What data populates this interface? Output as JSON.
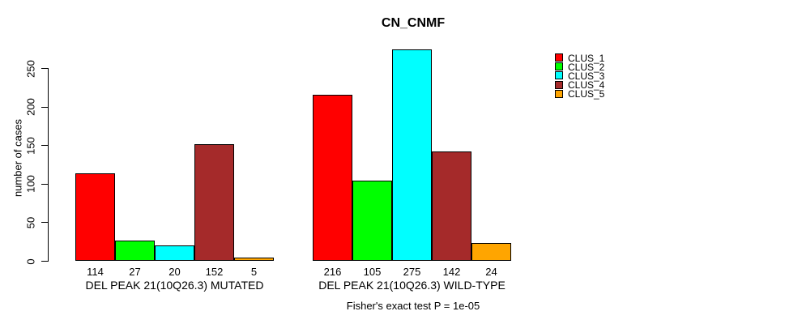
{
  "chart_data": {
    "type": "bar",
    "title": "CN_CNMF",
    "xlabel": "",
    "ylabel": "number of cases",
    "yticks": [
      0,
      50,
      100,
      150,
      200,
      250
    ],
    "ylim": [
      0,
      286
    ],
    "grid": false,
    "background_color": "#FFFFFF",
    "bar_border_color": "#000000",
    "legend_position": "top-right",
    "categories": [
      "DEL PEAK 21(10Q26.3) MUTATED",
      "DEL PEAK 21(10Q26.3) WILD-TYPE"
    ],
    "series": [
      {
        "name": "CLUS_1",
        "color": "#FF0000",
        "values": [
          114,
          216
        ]
      },
      {
        "name": "CLUS_2",
        "color": "#00FF00",
        "values": [
          27,
          105
        ]
      },
      {
        "name": "CLUS_3",
        "color": "#00FFFF",
        "values": [
          20,
          275
        ]
      },
      {
        "name": "CLUS_4",
        "color": "#A52A2A",
        "values": [
          152,
          142
        ]
      },
      {
        "name": "CLUS_5",
        "color": "#FFA500",
        "values": [
          5,
          24
        ]
      }
    ],
    "bar_value_labels": [
      [
        114,
        27,
        20,
        152,
        5
      ],
      [
        216,
        105,
        275,
        142,
        24
      ]
    ],
    "annotation": "Fisher's exact test P = 1e-05"
  }
}
